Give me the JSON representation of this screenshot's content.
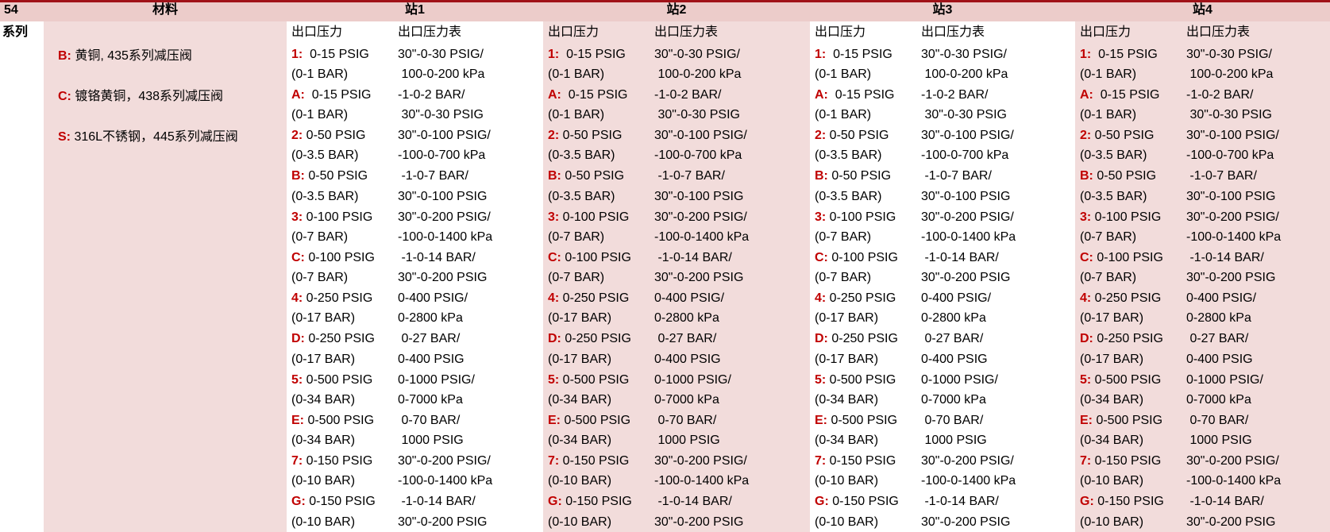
{
  "page": {
    "corner": "54",
    "series_label": "系列",
    "material_header": "材料",
    "sub_headers": {
      "outlet": "出口压力",
      "gauge": "出口压力表"
    },
    "stations": [
      "站1",
      "站2",
      "站3",
      "站4"
    ],
    "materials": [
      {
        "code": "B:",
        "name": " 黄铜, 435系列减压阀"
      },
      {
        "code": "C:",
        "name": " 镀铬黄铜，438系列减压阀"
      },
      {
        "code": "S:",
        "name": " 316L不锈钢，445系列减压阀"
      }
    ],
    "pressure_rows": [
      {
        "code": "1:",
        "outlet": "  0-15 PSIG",
        "outlet2": "(0-1 BAR)",
        "gauge": "30\"-0-30 PSIG/",
        "gauge2": " 100-0-200 kPa"
      },
      {
        "code": "A:",
        "outlet": "  0-15 PSIG",
        "outlet2": "(0-1 BAR)",
        "gauge": "-1-0-2 BAR/",
        "gauge2": " 30\"-0-30 PSIG"
      },
      {
        "code": "2:",
        "outlet": " 0-50 PSIG",
        "outlet2": "(0-3.5 BAR)",
        "gauge": "30\"-0-100 PSIG/",
        "gauge2": "-100-0-700 kPa"
      },
      {
        "code": "B:",
        "outlet": " 0-50 PSIG",
        "outlet2": "(0-3.5 BAR)",
        "gauge": " -1-0-7 BAR/",
        "gauge2": "30\"-0-100 PSIG"
      },
      {
        "code": "3:",
        "outlet": " 0-100 PSIG",
        "outlet2": "(0-7 BAR)",
        "gauge": "30\"-0-200 PSIG/",
        "gauge2": "-100-0-1400 kPa"
      },
      {
        "code": "C:",
        "outlet": " 0-100 PSIG",
        "outlet2": "(0-7 BAR)",
        "gauge": " -1-0-14 BAR/",
        "gauge2": "30\"-0-200 PSIG"
      },
      {
        "code": "4:",
        "outlet": " 0-250 PSIG",
        "outlet2": "(0-17 BAR)",
        "gauge": "0-400 PSIG/",
        "gauge2": "0-2800 kPa"
      },
      {
        "code": "D:",
        "outlet": " 0-250 PSIG",
        "outlet2": "(0-17 BAR)",
        "gauge": " 0-27 BAR/",
        "gauge2": "0-400 PSIG"
      },
      {
        "code": "5:",
        "outlet": " 0-500 PSIG",
        "outlet2": "(0-34 BAR)",
        "gauge": "0-1000 PSIG/",
        "gauge2": "0-7000 kPa"
      },
      {
        "code": "E:",
        "outlet": " 0-500 PSIG",
        "outlet2": "(0-34 BAR)",
        "gauge": " 0-70 BAR/",
        "gauge2": " 1000 PSIG"
      },
      {
        "code": "7:",
        "outlet": " 0-150 PSIG",
        "outlet2": "(0-10 BAR)",
        "gauge": "30\"-0-200 PSIG/",
        "gauge2": "-100-0-1400 kPa"
      },
      {
        "code": "G:",
        "outlet": " 0-150 PSIG",
        "outlet2": "(0-10 BAR)",
        "gauge": " -1-0-14 BAR/",
        "gauge2": "30\"-0-200 PSIG"
      }
    ],
    "colors": {
      "header_fill": "#ecccca",
      "band_fill": "#f2dcdb",
      "accent_red": "#a01218",
      "code_red": "#c00000",
      "grid_gray": "#c9c9c9",
      "row_border": "#000000"
    }
  }
}
